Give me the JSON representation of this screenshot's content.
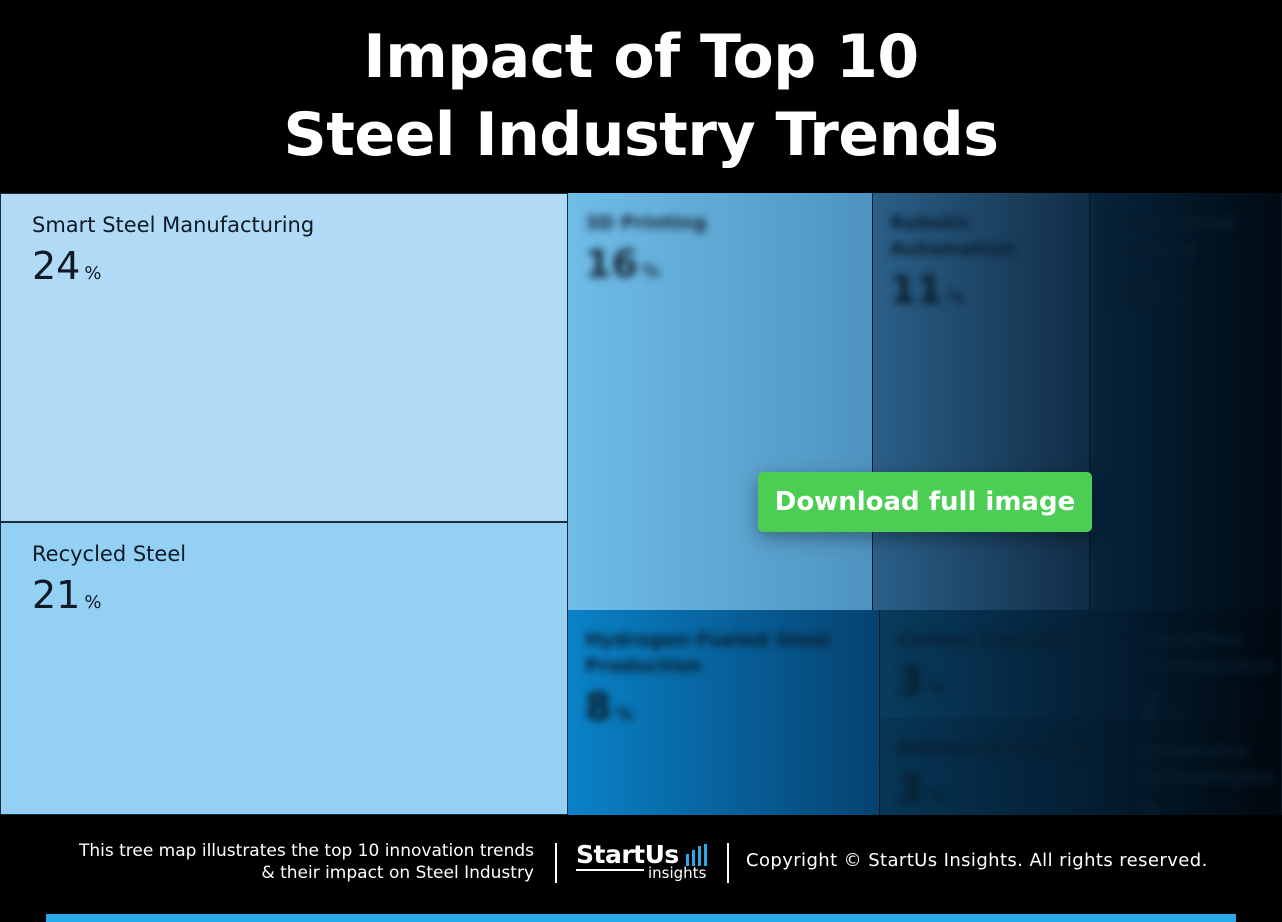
{
  "title": {
    "line1": "Impact of Top 10",
    "line2": "Steel Industry Trends"
  },
  "chart_data": {
    "type": "treemap",
    "title": "Impact of Top 10 Steel Industry Trends",
    "unit": "%",
    "items": [
      {
        "name": "Smart Steel Manufacturing",
        "value": 24,
        "color": "#b0daf6"
      },
      {
        "name": "Recycled Steel",
        "value": 21,
        "color": "#93d0f3"
      },
      {
        "name": "3D Printing",
        "value": 16,
        "color": "#79bfe6"
      },
      {
        "name": "Robotic Automation",
        "value": 11,
        "color": "#2a5a80"
      },
      {
        "name": "Laser-Aided Forming",
        "value": 10,
        "color": "#06243c"
      },
      {
        "name": "Hydrogen-Fueled Steel Production",
        "value": 8,
        "color": "#0a7bc0"
      },
      {
        "name": "Carbon Capture",
        "value": 3,
        "color": "#073a5c"
      },
      {
        "name": "Advanced Coating",
        "value": 3,
        "color": "#063556"
      },
      {
        "name": "Predictive Maintenance",
        "value": 2,
        "color": "#031a2c"
      },
      {
        "name": "Immersive Technologies",
        "value": 2,
        "color": "#031a2c"
      }
    ]
  },
  "download_button": {
    "label": "Download full image"
  },
  "footer": {
    "description_line1": "This tree map illustrates the top 10 innovation trends",
    "description_line2": "& their impact on Steel Industry",
    "logo_brand": "StartUs",
    "logo_sub": "insights",
    "copyright": "Copyright © StartUs Insights. All rights reserved."
  }
}
